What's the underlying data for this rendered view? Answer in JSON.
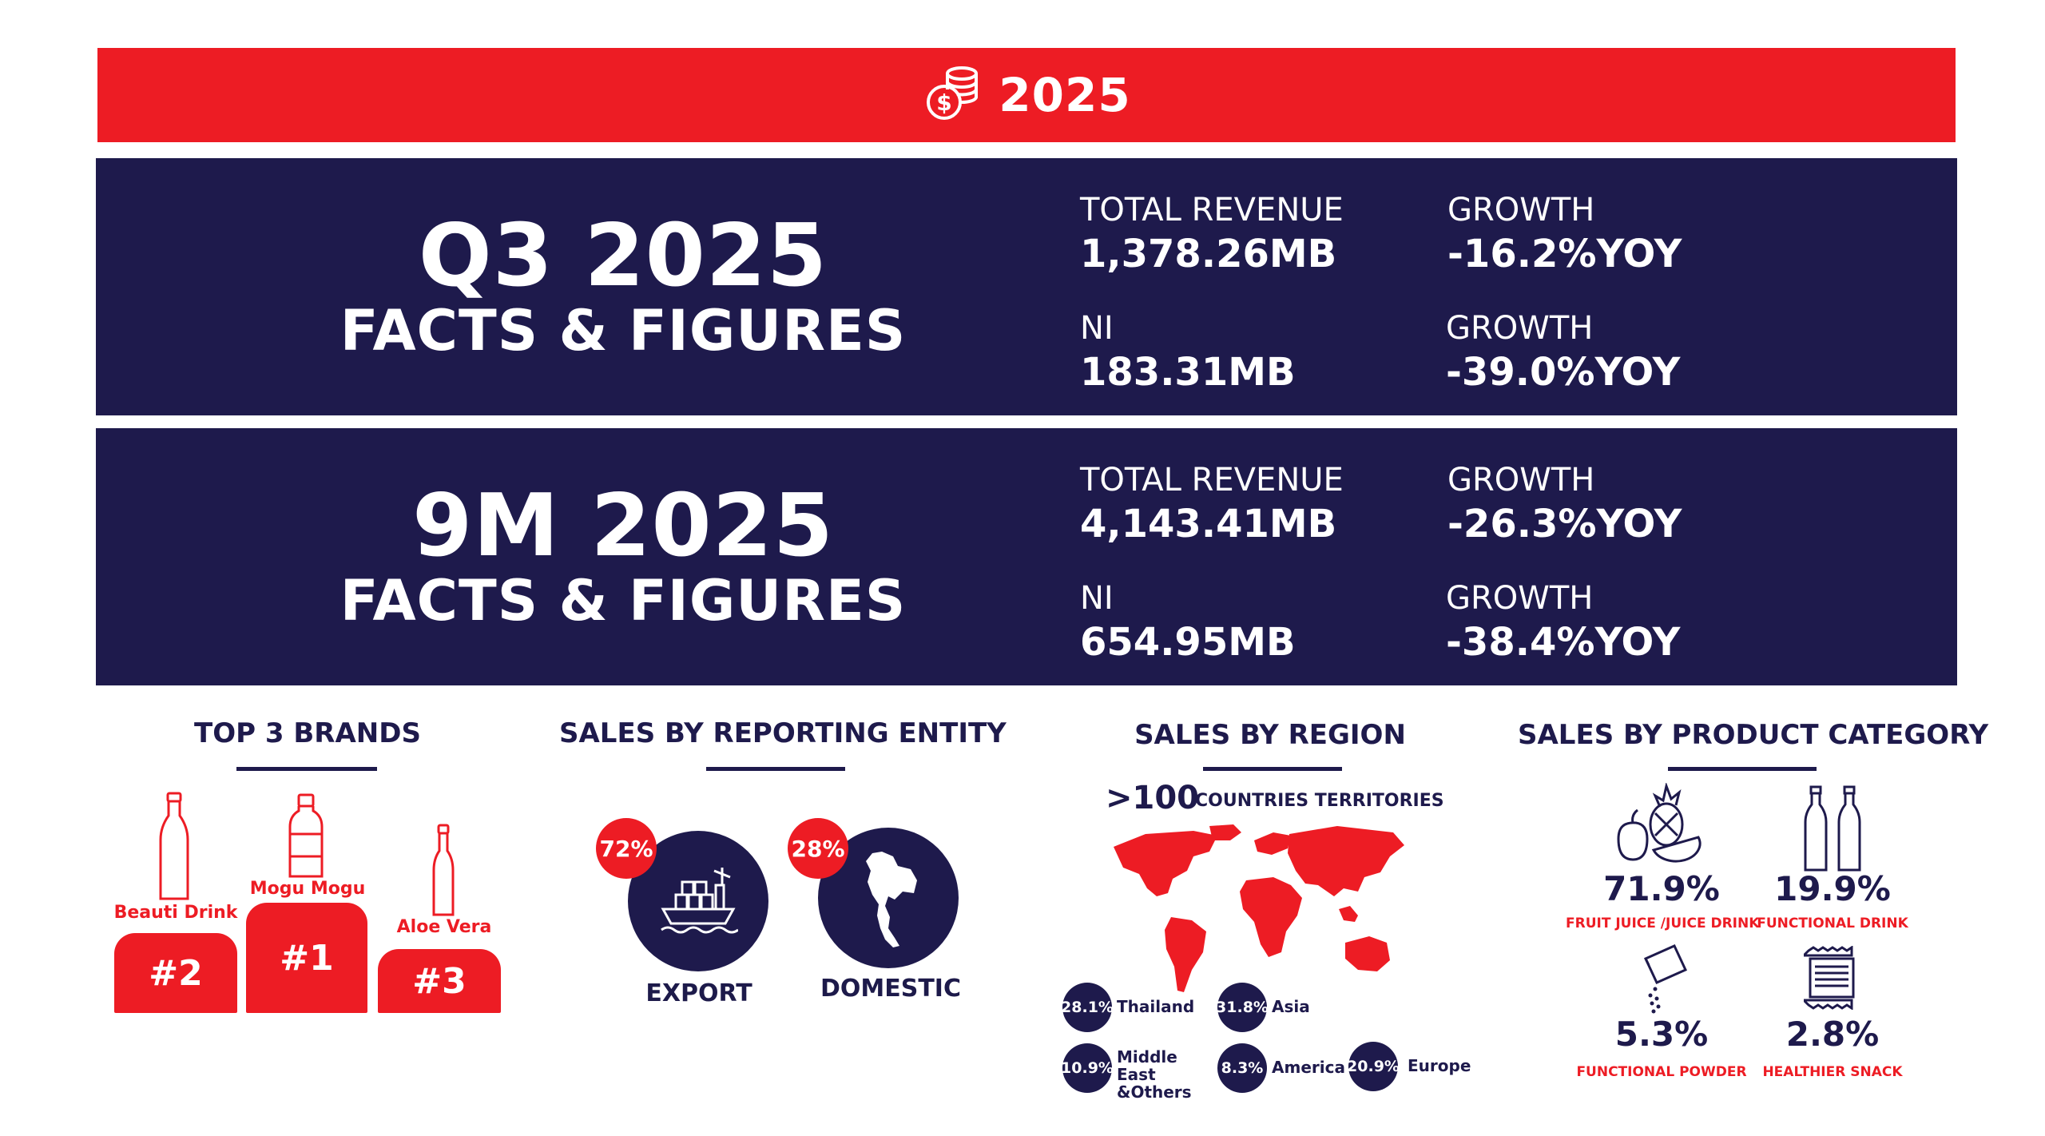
{
  "banner": {
    "year": "2025",
    "icon": "coins-dollar-icon"
  },
  "q3": {
    "title": "Q3 2025",
    "subtitle": "FACTS & FIGURES",
    "revenue_label": "TOTAL REVENUE",
    "revenue_value": "1,378.26MB",
    "revenue_growth_label": "GROWTH",
    "revenue_growth_value": "-16.2%YOY",
    "ni_label": "NI",
    "ni_value": "183.31MB",
    "ni_growth_label": "GROWTH",
    "ni_growth_value": "-39.0%YOY"
  },
  "nine_m": {
    "title": "9M 2025",
    "subtitle": "FACTS & FIGURES",
    "revenue_label": "TOTAL REVENUE",
    "revenue_value": "4,143.41MB",
    "revenue_growth_label": "GROWTH",
    "revenue_growth_value": "-26.3%YOY",
    "ni_label": "NI",
    "ni_value": "654.95MB",
    "ni_growth_label": "GROWTH",
    "ni_growth_value": "-38.4%YOY"
  },
  "brands": {
    "title": "TOP 3 BRANDS",
    "first": {
      "name": "Mogu Mogu",
      "rank": "#1"
    },
    "second": {
      "name": "Beauti Drink",
      "rank": "#2"
    },
    "third": {
      "name": "Aloe Vera",
      "rank": "#3"
    }
  },
  "entity": {
    "title": "SALES BY REPORTING ENTITY",
    "export": {
      "pct": "72%",
      "label": "EXPORT",
      "icon": "cargo-ship-icon"
    },
    "domestic": {
      "pct": "28%",
      "label": "DOMESTIC",
      "icon": "thailand-map-icon"
    }
  },
  "region": {
    "title": "SALES BY REGION",
    "count": ">100",
    "count_label": "COUNTRIES TERRITORIES",
    "items": [
      {
        "pct": "28.1%",
        "name": "Thailand"
      },
      {
        "pct": "31.8%",
        "name": "Asia"
      },
      {
        "pct": "10.9%",
        "name": "Middle East &Others"
      },
      {
        "pct": "8.3%",
        "name": "America"
      },
      {
        "pct": "20.9%",
        "name": "Europe"
      }
    ],
    "colors": {
      "map": "#ed1c24",
      "badge": "#1e1a4c"
    }
  },
  "category": {
    "title": "SALES BY PRODUCT CATEGORY",
    "items": [
      {
        "pct": "71.9%",
        "label": "FRUIT JUICE /JUICE DRINK",
        "icon": "fruit-icon"
      },
      {
        "pct": "19.9%",
        "label": "FUNCTIONAL DRINK",
        "icon": "bottles-icon"
      },
      {
        "pct": "5.3%",
        "label": "FUNCTIONAL POWDER",
        "icon": "powder-sachet-icon"
      },
      {
        "pct": "2.8%",
        "label": "HEALTHIER SNACK",
        "icon": "snack-bar-icon"
      }
    ]
  },
  "colors": {
    "red": "#ed1c24",
    "navy": "#1e1a4c",
    "white": "#ffffff"
  }
}
